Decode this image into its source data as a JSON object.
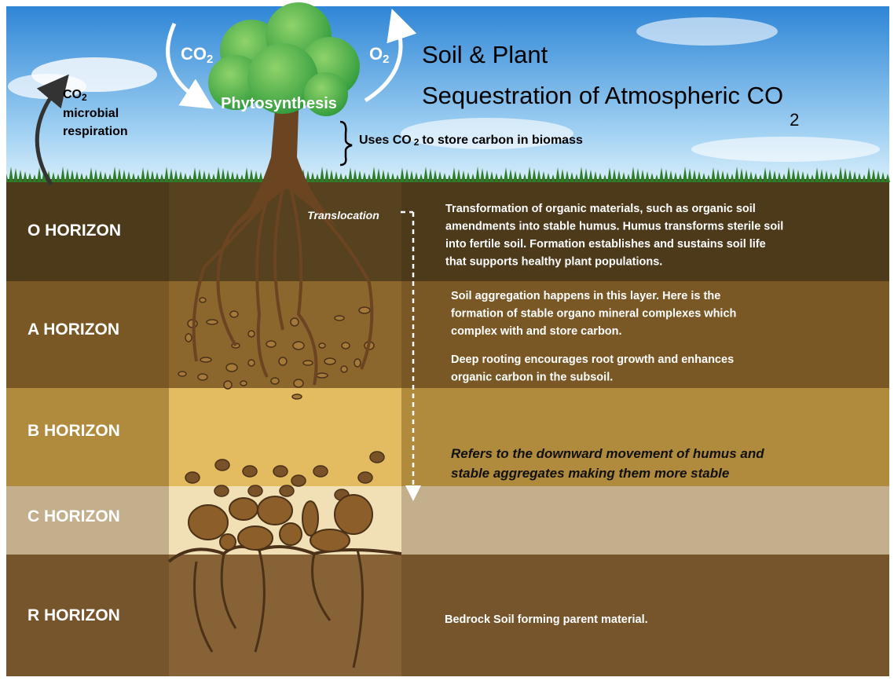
{
  "header": {
    "title_line1": "Soil & Plant",
    "title_line2": "Sequestration of Atmospheric CO",
    "title_subscript": "2"
  },
  "atmosphere": {
    "intake": {
      "text": "CO",
      "sub": "2"
    },
    "release": {
      "text": "O",
      "sub": "2"
    },
    "process": "Phytosynthesis",
    "respiration": {
      "text": "CO",
      "sub": "2",
      "caption": [
        "microbial",
        "respiration"
      ]
    },
    "biomass": {
      "before": "Uses CO",
      "sub": "2",
      "after": "to store carbon in biomass"
    }
  },
  "translocation": {
    "label": "Translocation",
    "note": [
      "Refers to the downward movement of humus and",
      "stable aggregates making them more stable"
    ]
  },
  "horizons": [
    {
      "name": "O  HORIZON",
      "description": [
        [
          "Transformation of organic materials, such as organic soil",
          "amendments into stable humus. Humus transforms sterile soil",
          "into fertile soil. Formation establishes and sustains soil life",
          "that supports healthy plant populations."
        ]
      ]
    },
    {
      "name": "A  HORIZON",
      "description": [
        [
          "Soil aggregation happens in this layer. Here is the",
          "formation of stable  organo  mineral complexes which",
          "complex with and store carbon."
        ],
        [
          "Deep rooting encourages root growth and enhances",
          "organic carbon in the subsoil."
        ]
      ]
    },
    {
      "name": "B  HORIZON",
      "description": []
    },
    {
      "name": "C  HORIZON",
      "description": []
    },
    {
      "name": "R  HORIZON",
      "description": [
        [
          "Bedrock    Soil  forming parent material."
        ]
      ]
    }
  ]
}
